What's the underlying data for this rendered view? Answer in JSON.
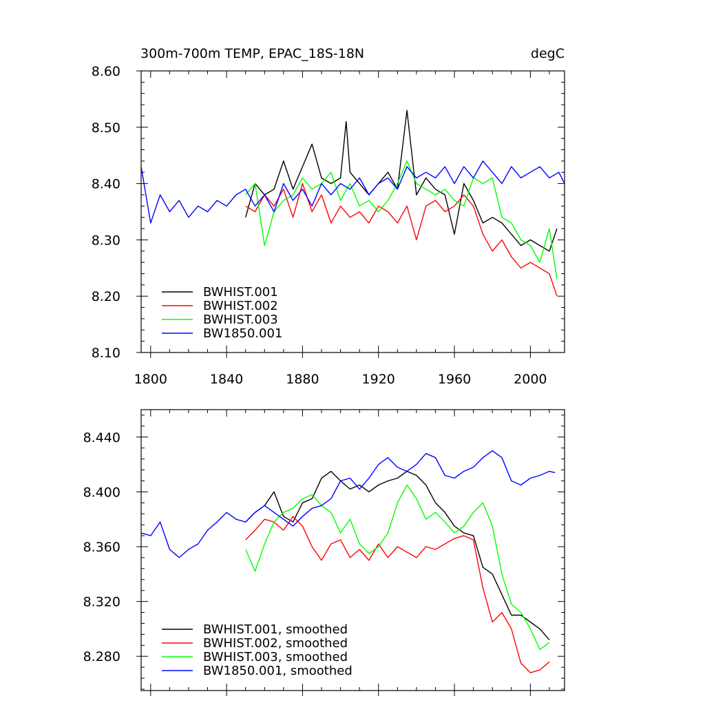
{
  "chart_data": [
    {
      "type": "line",
      "title": "300m-700m TEMP, EPAC_18S-18N",
      "units": "degC",
      "xlim": [
        1795,
        2018
      ],
      "ylim": [
        8.1,
        8.6
      ],
      "x_ticks": [
        1800,
        1840,
        1880,
        1920,
        1960,
        2000
      ],
      "x_tick_labels": [
        "1800",
        "1840",
        "1880",
        "1920",
        "1960",
        "2000"
      ],
      "y_ticks": [
        8.1,
        8.2,
        8.3,
        8.4,
        8.5,
        8.6
      ],
      "y_tick_labels": [
        "8.10",
        "8.20",
        "8.30",
        "8.40",
        "8.50",
        "8.60"
      ],
      "legend_position": "lower-left",
      "series": [
        {
          "name": "BWHIST.001",
          "color": "#000000",
          "x": [
            1850,
            1855,
            1860,
            1865,
            1870,
            1875,
            1880,
            1885,
            1890,
            1895,
            1900,
            1903,
            1905,
            1910,
            1915,
            1920,
            1925,
            1930,
            1935,
            1940,
            1945,
            1950,
            1955,
            1960,
            1965,
            1970,
            1975,
            1980,
            1985,
            1990,
            1995,
            2000,
            2005,
            2010,
            2014
          ],
          "y": [
            8.34,
            8.4,
            8.38,
            8.39,
            8.44,
            8.39,
            8.43,
            8.47,
            8.41,
            8.4,
            8.41,
            8.51,
            8.42,
            8.4,
            8.38,
            8.4,
            8.42,
            8.39,
            8.53,
            8.38,
            8.41,
            8.39,
            8.38,
            8.31,
            8.4,
            8.37,
            8.33,
            8.34,
            8.33,
            8.31,
            8.29,
            8.3,
            8.29,
            8.28,
            8.32
          ]
        },
        {
          "name": "BWHIST.002",
          "color": "#ff0000",
          "x": [
            1850,
            1855,
            1860,
            1865,
            1870,
            1875,
            1880,
            1885,
            1890,
            1895,
            1900,
            1905,
            1910,
            1915,
            1920,
            1925,
            1930,
            1935,
            1940,
            1945,
            1950,
            1955,
            1960,
            1965,
            1970,
            1975,
            1980,
            1985,
            1990,
            1995,
            2000,
            2005,
            2010,
            2014
          ],
          "y": [
            8.36,
            8.35,
            8.38,
            8.36,
            8.39,
            8.34,
            8.4,
            8.35,
            8.38,
            8.33,
            8.36,
            8.34,
            8.35,
            8.33,
            8.36,
            8.35,
            8.33,
            8.36,
            8.3,
            8.36,
            8.37,
            8.35,
            8.36,
            8.38,
            8.36,
            8.31,
            8.28,
            8.3,
            8.27,
            8.25,
            8.26,
            8.25,
            8.24,
            8.2
          ]
        },
        {
          "name": "BWHIST.003",
          "color": "#00ff00",
          "x": [
            1850,
            1855,
            1860,
            1865,
            1870,
            1875,
            1880,
            1885,
            1890,
            1895,
            1900,
            1905,
            1910,
            1915,
            1920,
            1925,
            1930,
            1935,
            1940,
            1945,
            1950,
            1955,
            1960,
            1965,
            1970,
            1975,
            1980,
            1985,
            1990,
            1995,
            2000,
            2005,
            2010,
            2014
          ],
          "y": [
            8.38,
            8.4,
            8.29,
            8.35,
            8.37,
            8.38,
            8.41,
            8.39,
            8.4,
            8.42,
            8.37,
            8.4,
            8.36,
            8.37,
            8.35,
            8.37,
            8.4,
            8.44,
            8.4,
            8.39,
            8.38,
            8.39,
            8.37,
            8.36,
            8.41,
            8.4,
            8.41,
            8.34,
            8.33,
            8.3,
            8.29,
            8.26,
            8.32,
            8.23
          ]
        },
        {
          "name": "BW1850.001",
          "color": "#0000ff",
          "x": [
            1795,
            1800,
            1805,
            1810,
            1815,
            1820,
            1825,
            1830,
            1835,
            1840,
            1845,
            1850,
            1855,
            1860,
            1865,
            1870,
            1875,
            1880,
            1885,
            1890,
            1895,
            1900,
            1905,
            1910,
            1915,
            1920,
            1925,
            1930,
            1935,
            1940,
            1945,
            1950,
            1955,
            1960,
            1965,
            1970,
            1975,
            1980,
            1985,
            1990,
            1995,
            2000,
            2005,
            2010,
            2015,
            2018
          ],
          "y": [
            8.43,
            8.33,
            8.38,
            8.35,
            8.37,
            8.34,
            8.36,
            8.35,
            8.37,
            8.36,
            8.38,
            8.39,
            8.36,
            8.38,
            8.35,
            8.4,
            8.37,
            8.39,
            8.36,
            8.4,
            8.38,
            8.4,
            8.39,
            8.41,
            8.38,
            8.4,
            8.41,
            8.39,
            8.43,
            8.41,
            8.42,
            8.41,
            8.43,
            8.4,
            8.43,
            8.41,
            8.44,
            8.42,
            8.4,
            8.43,
            8.41,
            8.42,
            8.43,
            8.41,
            8.42,
            8.4
          ]
        }
      ]
    },
    {
      "type": "line",
      "title": "",
      "xlim": [
        1795,
        2018
      ],
      "ylim": [
        8.255,
        8.46
      ],
      "x_ticks": [
        1800,
        1840,
        1880,
        1920,
        1960,
        2000
      ],
      "y_ticks": [
        8.28,
        8.32,
        8.36,
        8.4,
        8.44
      ],
      "y_tick_labels": [
        "8.280",
        "8.320",
        "8.360",
        "8.400",
        "8.440"
      ],
      "legend_position": "lower-left",
      "series": [
        {
          "name": "BWHIST.001, smoothed",
          "color": "#000000",
          "x": [
            1850,
            1855,
            1860,
            1865,
            1870,
            1875,
            1880,
            1885,
            1890,
            1895,
            1900,
            1905,
            1910,
            1915,
            1920,
            1925,
            1930,
            1935,
            1940,
            1945,
            1950,
            1955,
            1960,
            1965,
            1970,
            1975,
            1980,
            1985,
            1990,
            1995,
            2000,
            2005,
            2010
          ],
          "y": [
            8.378,
            8.385,
            8.39,
            8.4,
            8.382,
            8.378,
            8.392,
            8.395,
            8.41,
            8.415,
            8.408,
            8.402,
            8.405,
            8.4,
            8.405,
            8.408,
            8.41,
            8.415,
            8.412,
            8.405,
            8.392,
            8.385,
            8.375,
            8.37,
            8.368,
            8.345,
            8.34,
            8.325,
            8.31,
            8.31,
            8.305,
            8.3,
            8.292
          ]
        },
        {
          "name": "BWHIST.002, smoothed",
          "color": "#ff0000",
          "x": [
            1850,
            1855,
            1860,
            1865,
            1870,
            1875,
            1880,
            1885,
            1890,
            1895,
            1900,
            1905,
            1910,
            1915,
            1920,
            1925,
            1930,
            1935,
            1940,
            1945,
            1950,
            1955,
            1960,
            1965,
            1970,
            1975,
            1980,
            1985,
            1990,
            1995,
            2000,
            2005,
            2010
          ],
          "y": [
            8.365,
            8.372,
            8.38,
            8.378,
            8.372,
            8.382,
            8.375,
            8.36,
            8.35,
            8.362,
            8.365,
            8.352,
            8.358,
            8.35,
            8.362,
            8.352,
            8.36,
            8.356,
            8.352,
            8.36,
            8.358,
            8.362,
            8.366,
            8.368,
            8.365,
            8.33,
            8.305,
            8.312,
            8.3,
            8.275,
            8.268,
            8.27,
            8.276
          ]
        },
        {
          "name": "BWHIST.003, smoothed",
          "color": "#00ff00",
          "x": [
            1850,
            1855,
            1860,
            1865,
            1870,
            1875,
            1880,
            1885,
            1890,
            1895,
            1900,
            1905,
            1910,
            1915,
            1920,
            1925,
            1930,
            1935,
            1940,
            1945,
            1950,
            1955,
            1960,
            1965,
            1970,
            1975,
            1980,
            1985,
            1990,
            1995,
            2000,
            2005,
            2010
          ],
          "y": [
            8.358,
            8.342,
            8.362,
            8.378,
            8.385,
            8.388,
            8.395,
            8.398,
            8.39,
            8.385,
            8.37,
            8.38,
            8.362,
            8.355,
            8.36,
            8.37,
            8.392,
            8.405,
            8.395,
            8.38,
            8.385,
            8.378,
            8.37,
            8.375,
            8.385,
            8.392,
            8.375,
            8.34,
            8.318,
            8.312,
            8.3,
            8.285,
            8.29
          ]
        },
        {
          "name": "BW1850.001, smoothed",
          "color": "#0000ff",
          "x": [
            1795,
            1800,
            1805,
            1810,
            1815,
            1820,
            1825,
            1830,
            1835,
            1840,
            1845,
            1850,
            1855,
            1860,
            1865,
            1870,
            1875,
            1880,
            1885,
            1890,
            1895,
            1900,
            1905,
            1910,
            1915,
            1920,
            1925,
            1930,
            1935,
            1940,
            1945,
            1950,
            1955,
            1960,
            1965,
            1970,
            1975,
            1980,
            1985,
            1990,
            1995,
            2000,
            2005,
            2010,
            2013
          ],
          "y": [
            8.37,
            8.368,
            8.378,
            8.358,
            8.352,
            8.358,
            8.362,
            8.372,
            8.378,
            8.385,
            8.38,
            8.378,
            8.385,
            8.39,
            8.385,
            8.38,
            8.375,
            8.382,
            8.388,
            8.39,
            8.395,
            8.408,
            8.41,
            8.402,
            8.41,
            8.42,
            8.425,
            8.418,
            8.415,
            8.42,
            8.428,
            8.425,
            8.412,
            8.41,
            8.415,
            8.418,
            8.425,
            8.43,
            8.425,
            8.408,
            8.405,
            8.41,
            8.412,
            8.415,
            8.414
          ]
        }
      ]
    }
  ]
}
